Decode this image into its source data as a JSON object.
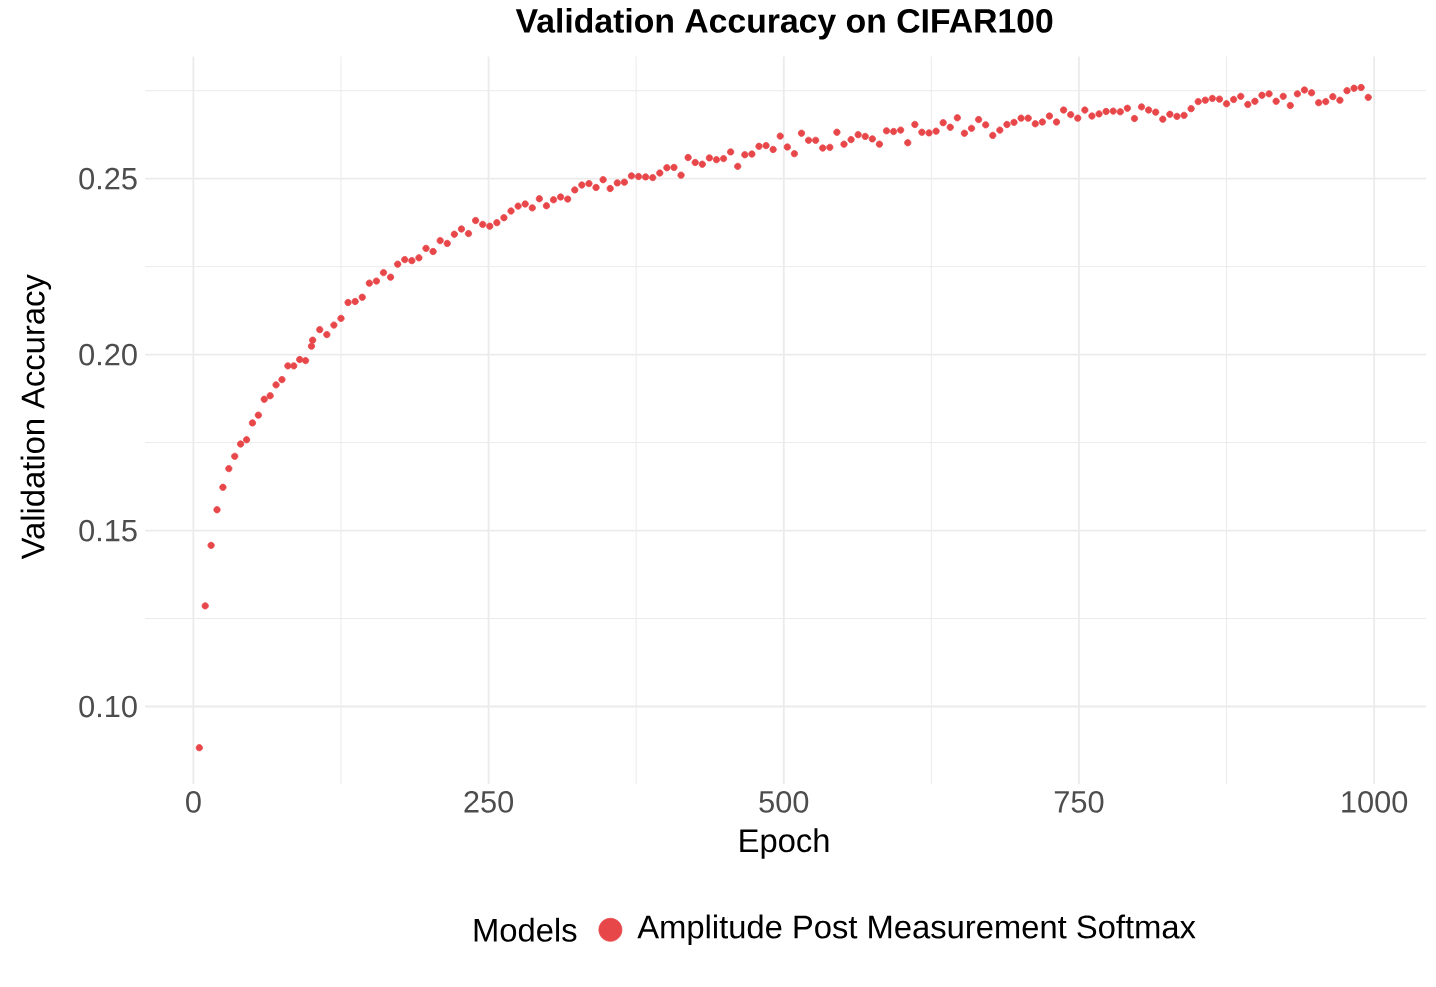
{
  "chart_data": {
    "type": "scatter",
    "title": "Validation Accuracy on CIFAR100",
    "xlabel": "Epoch",
    "ylabel": "Validation Accuracy",
    "legend_title": "Models",
    "xlim": [
      -41,
      1044
    ],
    "ylim": [
      0.078,
      0.2847
    ],
    "xticks": [
      0,
      250,
      500,
      750,
      1000
    ],
    "yticks": [
      {
        "value": 0.1,
        "label": "0.10"
      },
      {
        "value": 0.15,
        "label": "0.15"
      },
      {
        "value": 0.2,
        "label": "0.20"
      },
      {
        "value": 0.25,
        "label": "0.25"
      }
    ],
    "grid": true,
    "legend": "bottom",
    "marker": "circle",
    "series": [
      {
        "name": "Amplitude Post Measurement Softmax",
        "color": "#e8474a",
        "x": [
          5,
          10,
          15,
          20,
          25,
          30,
          35,
          40,
          45,
          50,
          55,
          60,
          65,
          70,
          75,
          80,
          85,
          90,
          95,
          100,
          101,
          107,
          113,
          119,
          125,
          131,
          137,
          143,
          149,
          155,
          161,
          167,
          173,
          179,
          185,
          191,
          197,
          203,
          209,
          215,
          221,
          227,
          233,
          239,
          245,
          251,
          257,
          263,
          269,
          275,
          281,
          287,
          293,
          299,
          305,
          311,
          317,
          323,
          329,
          335,
          341,
          347,
          353,
          359,
          365,
          371,
          377,
          383,
          389,
          395,
          401,
          407,
          413,
          419,
          425,
          431,
          437,
          443,
          449,
          455,
          461,
          467,
          473,
          479,
          485,
          491,
          497,
          503,
          509,
          515,
          521,
          527,
          533,
          539,
          545,
          551,
          557,
          563,
          569,
          575,
          581,
          587,
          593,
          599,
          605,
          611,
          617,
          623,
          629,
          635,
          641,
          647,
          653,
          659,
          665,
          671,
          677,
          683,
          689,
          695,
          701,
          707,
          713,
          719,
          725,
          731,
          737,
          743,
          749,
          755,
          761,
          767,
          773,
          779,
          785,
          791,
          797,
          803,
          809,
          815,
          821,
          827,
          833,
          839,
          845,
          851,
          857,
          863,
          869,
          875,
          881,
          887,
          893,
          899,
          905,
          911,
          917,
          923,
          929,
          935,
          941,
          947,
          953,
          959,
          965,
          971,
          977,
          983,
          989,
          995
        ],
        "values": [
          0.0883,
          0.1286,
          0.1458,
          0.1559,
          0.1623,
          0.1676,
          0.1711,
          0.1746,
          0.1758,
          0.1806,
          0.1828,
          0.1873,
          0.1883,
          0.1914,
          0.1929,
          0.1968,
          0.1968,
          0.1986,
          0.1983,
          0.2024,
          0.2041,
          0.2071,
          0.2057,
          0.2084,
          0.2103,
          0.2148,
          0.2151,
          0.2163,
          0.2203,
          0.2209,
          0.2233,
          0.222,
          0.2257,
          0.227,
          0.2267,
          0.2275,
          0.2302,
          0.2293,
          0.2324,
          0.2316,
          0.2342,
          0.2357,
          0.2344,
          0.2381,
          0.237,
          0.2365,
          0.2375,
          0.2389,
          0.2408,
          0.2422,
          0.2428,
          0.2417,
          0.2443,
          0.2423,
          0.244,
          0.2448,
          0.2442,
          0.2468,
          0.2482,
          0.2486,
          0.2475,
          0.2497,
          0.2472,
          0.2488,
          0.249,
          0.2508,
          0.2506,
          0.2505,
          0.2503,
          0.2516,
          0.2531,
          0.2532,
          0.251,
          0.256,
          0.2546,
          0.2541,
          0.2559,
          0.2554,
          0.2557,
          0.2576,
          0.2535,
          0.2568,
          0.257,
          0.2592,
          0.2594,
          0.2583,
          0.2621,
          0.259,
          0.2571,
          0.2629,
          0.2609,
          0.2609,
          0.2587,
          0.2589,
          0.2632,
          0.2598,
          0.2611,
          0.2625,
          0.262,
          0.2613,
          0.2598,
          0.2636,
          0.2634,
          0.2638,
          0.2602,
          0.2654,
          0.2632,
          0.263,
          0.2635,
          0.2659,
          0.2646,
          0.2673,
          0.2629,
          0.2643,
          0.2668,
          0.2653,
          0.2623,
          0.2638,
          0.2654,
          0.266,
          0.2672,
          0.2672,
          0.2656,
          0.2661,
          0.2678,
          0.2661,
          0.2695,
          0.2682,
          0.2672,
          0.2695,
          0.2678,
          0.2684,
          0.2691,
          0.2692,
          0.269,
          0.27,
          0.2671,
          0.2704,
          0.2695,
          0.2689,
          0.2669,
          0.2683,
          0.2677,
          0.268,
          0.2699,
          0.2719,
          0.2723,
          0.2728,
          0.2726,
          0.2713,
          0.2725,
          0.2734,
          0.2711,
          0.272,
          0.2737,
          0.2741,
          0.272,
          0.2734,
          0.2708,
          0.2741,
          0.2752,
          0.2744,
          0.2716,
          0.2719,
          0.2733,
          0.2723,
          0.275,
          0.2757,
          0.2759,
          0.2731
        ]
      }
    ]
  }
}
